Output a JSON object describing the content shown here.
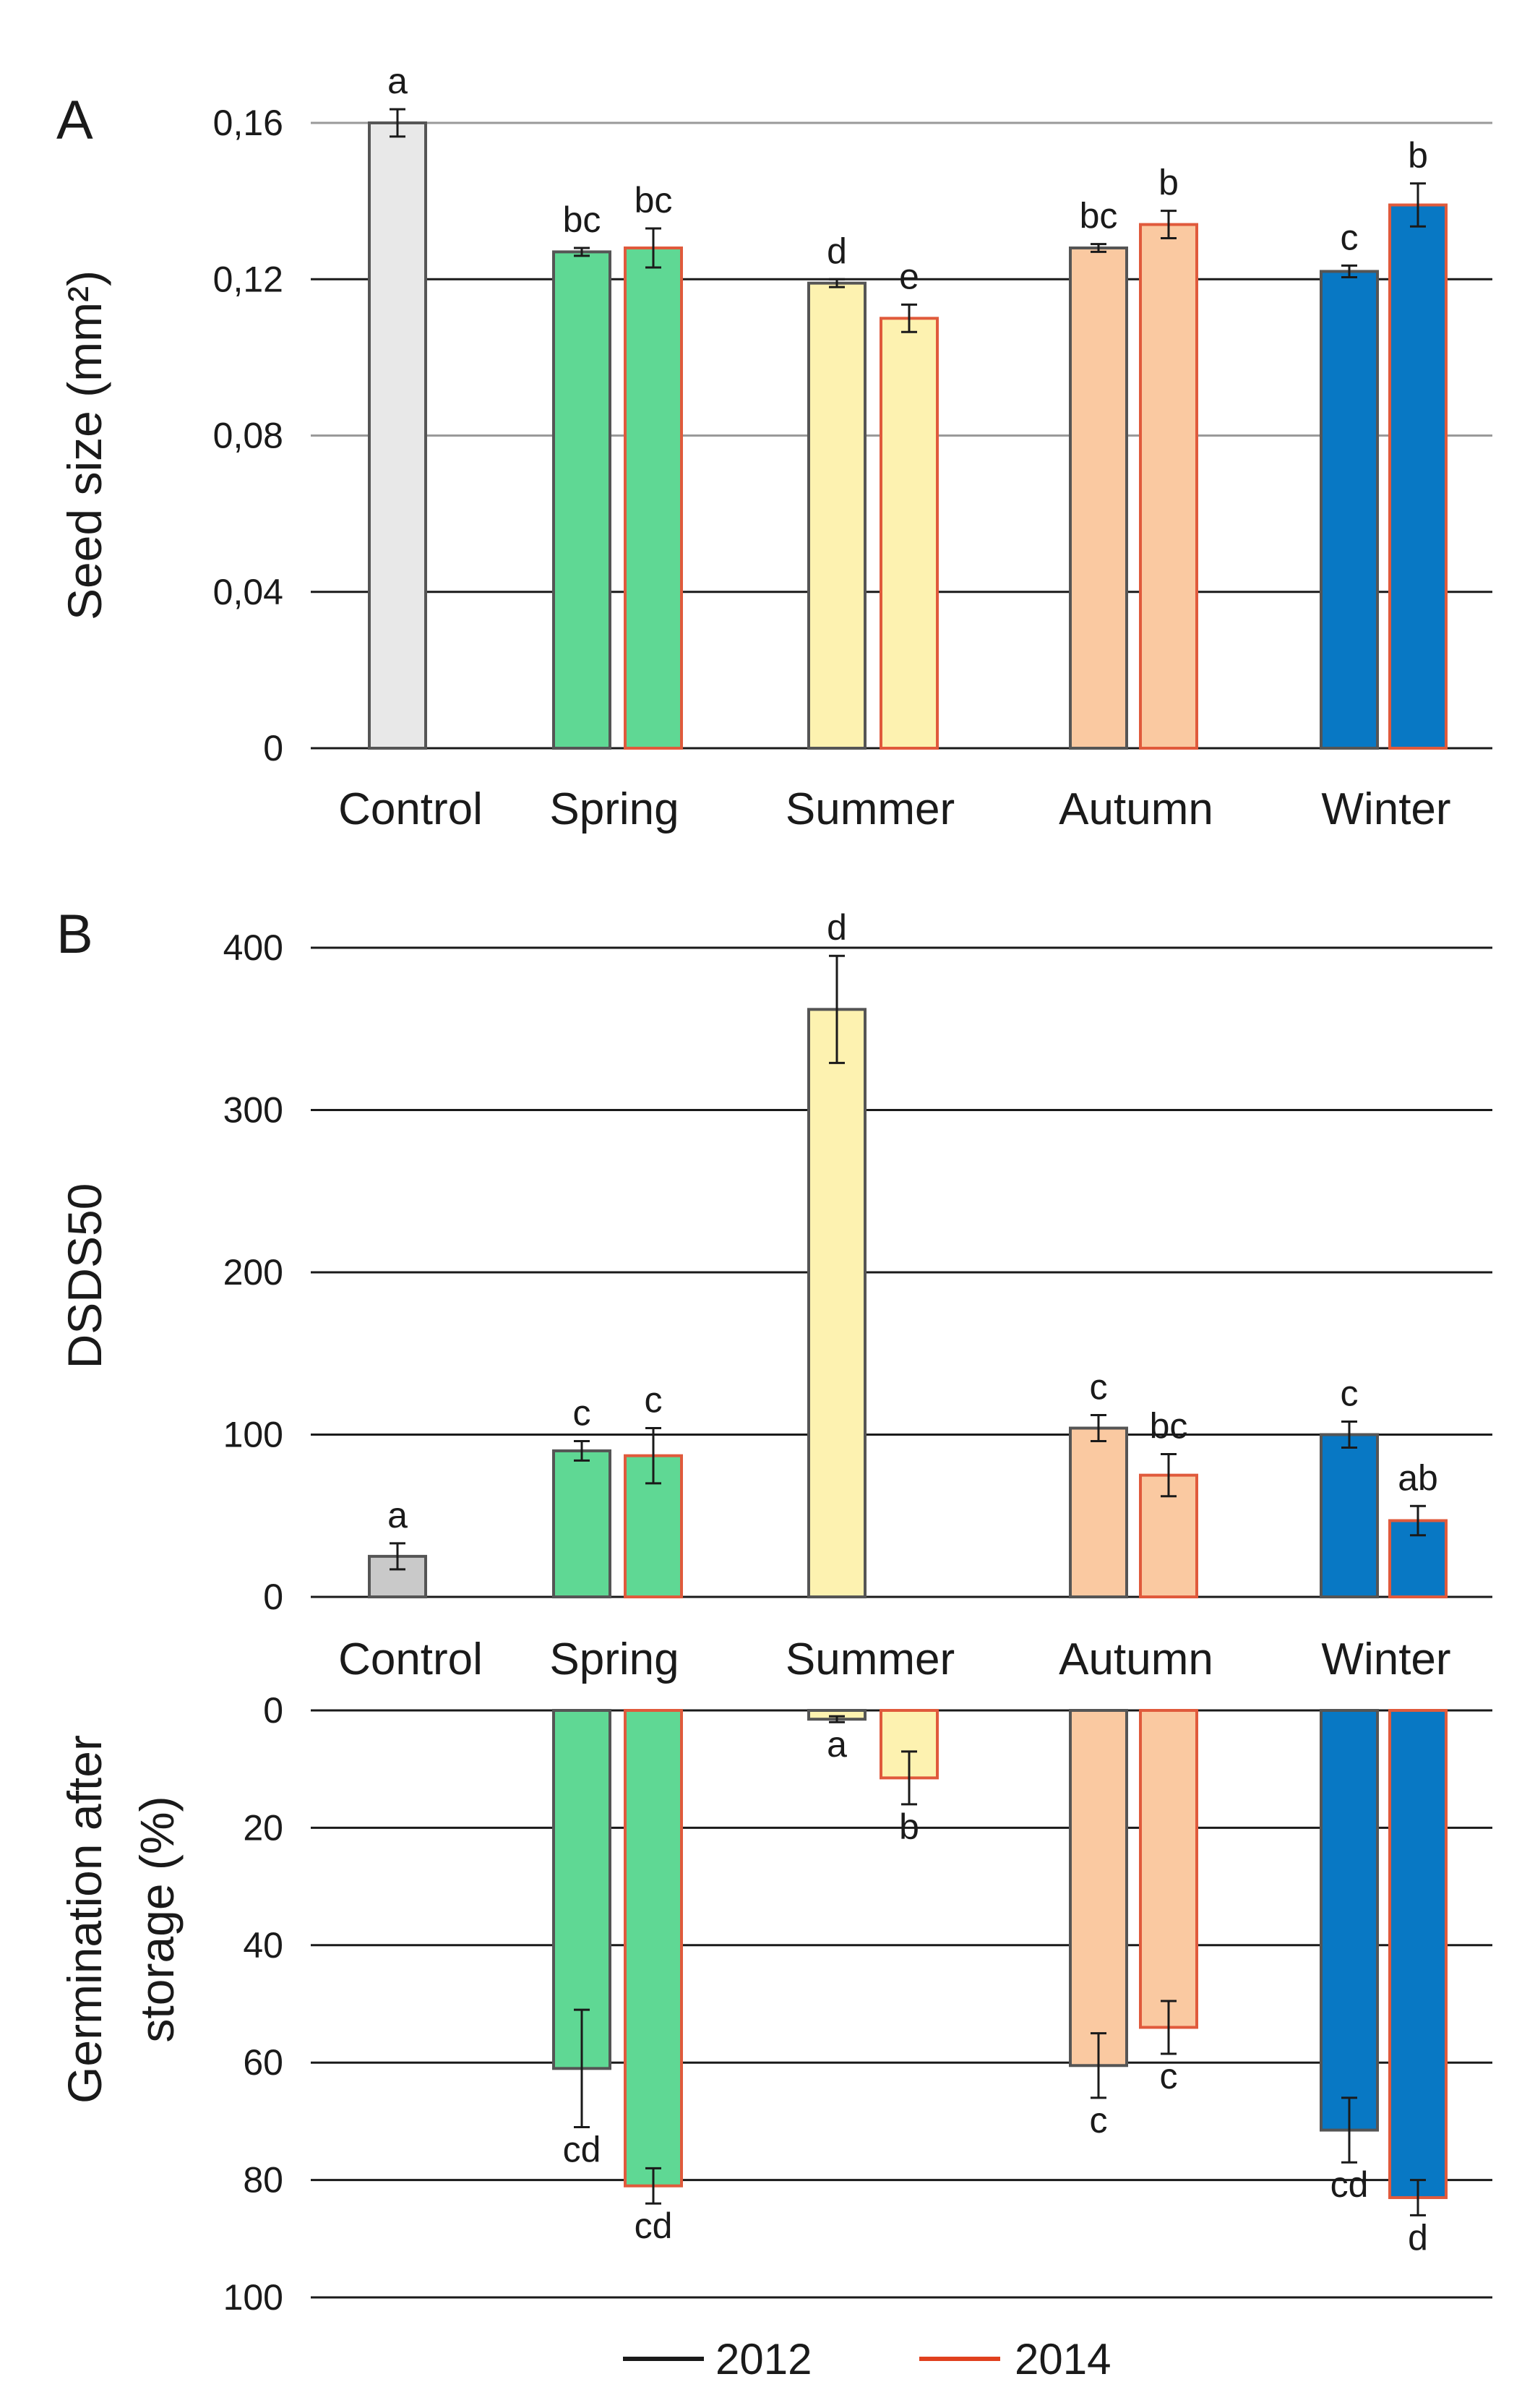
{
  "colors": {
    "Control": "#e8e8e8",
    "Control_B": "#c9c9c9",
    "Spring": "#5fd894",
    "Summer": "#fdf2b0",
    "Autumn": "#fac9a1",
    "Winter": "#0878c4",
    "edge_2012": "#555555",
    "edge_2014": "#e05a3c",
    "legend_2012": "#1a1a1a",
    "legend_2014": "#e0401e"
  },
  "legend": {
    "y2012": "2012",
    "y2014": "2014"
  },
  "chart_data": [
    {
      "id": "A",
      "type": "bar",
      "panel_label": "A",
      "ylabel": "Seed size (mm²)",
      "ylim": [
        0,
        0.16
      ],
      "yticks": [
        "0",
        "0,04",
        "0,08",
        "0,12",
        "0,16"
      ],
      "ytick_values": [
        0,
        0.04,
        0.08,
        0.12,
        0.16
      ],
      "categories": [
        "Control",
        "Spring",
        "Summer",
        "Autumn",
        "Winter"
      ],
      "series": [
        {
          "name": "2012",
          "values": [
            0.16,
            0.127,
            0.119,
            0.128,
            0.122
          ],
          "errors": [
            0.0035,
            0.001,
            0.001,
            0.001,
            0.0015
          ],
          "labels": [
            "a",
            "bc",
            "d",
            "bc",
            "c"
          ]
        },
        {
          "name": "2014",
          "values": [
            null,
            0.128,
            0.11,
            0.134,
            0.139
          ],
          "errors": [
            null,
            0.005,
            0.0035,
            0.0035,
            0.0055
          ],
          "labels": [
            null,
            "bc",
            "e",
            "b",
            "b"
          ]
        }
      ]
    },
    {
      "id": "B",
      "type": "bar",
      "panel_label": "B",
      "ylabel": "DSDS50",
      "ylim": [
        0,
        400
      ],
      "yticks": [
        "0",
        "100",
        "200",
        "300",
        "400"
      ],
      "ytick_values": [
        0,
        100,
        200,
        300,
        400
      ],
      "categories": [
        "Control",
        "Spring",
        "Summer",
        "Autumn",
        "Winter"
      ],
      "series": [
        {
          "name": "2012",
          "values": [
            25,
            90,
            362,
            104,
            100
          ],
          "errors": [
            8,
            6,
            33,
            8,
            8
          ],
          "labels": [
            "a",
            "c",
            "d",
            "c",
            "c"
          ]
        },
        {
          "name": "2014",
          "values": [
            null,
            87,
            null,
            75,
            47
          ],
          "errors": [
            null,
            17,
            null,
            13,
            9
          ],
          "labels": [
            null,
            "c",
            null,
            "bc",
            "ab"
          ]
        }
      ]
    },
    {
      "id": "C",
      "type": "bar",
      "ylabel_line1": "Germination after",
      "ylabel_line2": "storage (%)",
      "ylim": [
        0,
        100
      ],
      "y_inverted": true,
      "yticks": [
        "0",
        "20",
        "40",
        "60",
        "80",
        "100"
      ],
      "ytick_values": [
        0,
        20,
        40,
        60,
        80,
        100
      ],
      "categories": [
        "Control",
        "Spring",
        "Summer",
        "Autumn",
        "Winter"
      ],
      "series": [
        {
          "name": "2012",
          "values": [
            null,
            61,
            1.5,
            60.5,
            71.5
          ],
          "errors": [
            null,
            10,
            0.5,
            5.5,
            5.5
          ],
          "labels": [
            null,
            "cd",
            "a",
            "c",
            "cd"
          ]
        },
        {
          "name": "2014",
          "values": [
            null,
            81,
            11.5,
            54,
            83
          ],
          "errors": [
            null,
            3,
            4.5,
            4.5,
            3
          ],
          "labels": [
            null,
            "cd",
            "b",
            "c",
            "d"
          ]
        }
      ]
    }
  ]
}
